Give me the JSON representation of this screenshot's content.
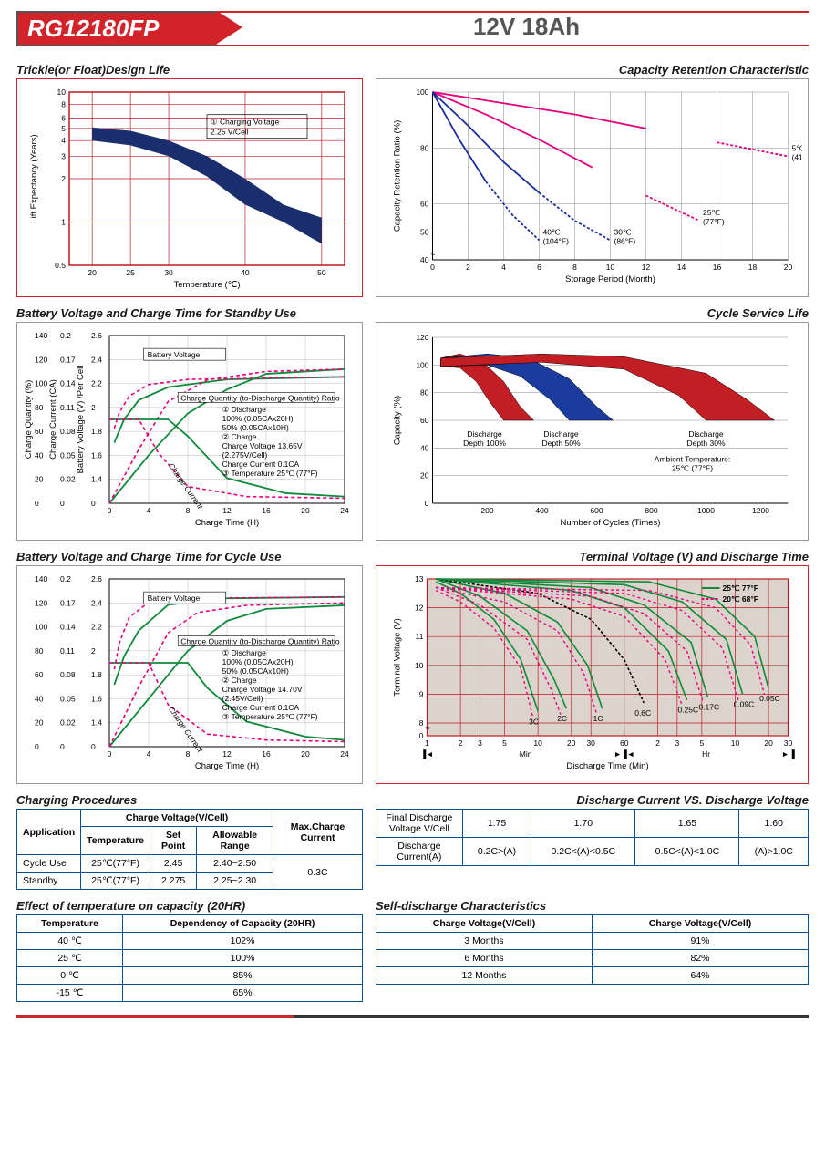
{
  "header": {
    "model": "RG12180FP",
    "spec": "12V  18Ah"
  },
  "chart1": {
    "title": "Trickle(or Float)Design Life",
    "xlabel": "Temperature (℃)",
    "ylabel": "Lift  Expectancy (Years)",
    "x_ticks": [
      20,
      25,
      30,
      40,
      50
    ],
    "y_ticks": [
      0.5,
      1,
      2,
      3,
      4,
      5,
      6,
      8,
      10
    ],
    "note": "① Charging Voltage\n2.25 V/Cell",
    "band": {
      "upper": [
        [
          20,
          5.1
        ],
        [
          25,
          4.8
        ],
        [
          30,
          4.0
        ],
        [
          35,
          3.0
        ],
        [
          40,
          2.0
        ],
        [
          45,
          1.4
        ],
        [
          50,
          1.1
        ]
      ],
      "lower": [
        [
          20,
          4.0
        ],
        [
          25,
          3.7
        ],
        [
          30,
          3.0
        ],
        [
          35,
          2.1
        ],
        [
          40,
          1.4
        ],
        [
          45,
          1.0
        ],
        [
          50,
          0.75
        ]
      ],
      "fill": "#1a2e6e"
    },
    "border": "#d2232a",
    "grid": "#bd1c24"
  },
  "chart2": {
    "title": "Capacity  Retention  Characteristic",
    "xlabel": "Storage Period (Month)",
    "ylabel": "Capacity Retention Ratio (%)",
    "x_ticks": [
      0,
      2,
      4,
      6,
      8,
      10,
      12,
      14,
      16,
      18,
      20
    ],
    "y_ticks": [
      40,
      50,
      60,
      80,
      100
    ],
    "series": [
      {
        "label": "5℃\n(41°F)",
        "color": "#e6007e",
        "dash": "3,2",
        "pts": [
          [
            0,
            100
          ],
          [
            4,
            96
          ],
          [
            8,
            92
          ],
          [
            12,
            87
          ],
          [
            16,
            82
          ],
          [
            20,
            77
          ]
        ],
        "solid_to": 14
      },
      {
        "label": "25℃\n(77°F)",
        "color": "#e6007e",
        "dash": "3,2",
        "pts": [
          [
            0,
            100
          ],
          [
            3,
            92
          ],
          [
            6,
            83
          ],
          [
            9,
            73
          ],
          [
            12,
            63
          ],
          [
            15,
            54
          ]
        ],
        "solid_to": 11
      },
      {
        "label": "30℃\n(86°F)",
        "color": "#1a2e9e",
        "dash": "3,2",
        "pts": [
          [
            0,
            100
          ],
          [
            2,
            88
          ],
          [
            4,
            75
          ],
          [
            6,
            64
          ],
          [
            8,
            54
          ],
          [
            10,
            47
          ]
        ],
        "solid_to": 7
      },
      {
        "label": "40℃\n(104°F)",
        "color": "#1a2e9e",
        "dash": "3,2",
        "pts": [
          [
            0,
            100
          ],
          [
            1.5,
            83
          ],
          [
            3,
            68
          ],
          [
            4.5,
            56
          ],
          [
            6,
            47
          ]
        ],
        "solid_to": 4
      }
    ]
  },
  "chart3": {
    "title": "Battery Voltage and Charge Time for Standby Use",
    "xlabel": "Charge Time (H)",
    "y1": "Charge Quantity (%)",
    "y2": "Charge Current (CA)",
    "y3": "Battery Voltage (V) /Per Cell",
    "x_ticks": [
      0,
      4,
      8,
      12,
      16,
      20,
      24
    ],
    "y1_ticks": [
      0,
      20,
      40,
      60,
      80,
      100,
      120,
      140
    ],
    "y2_ticks": [
      0,
      0.02,
      0.05,
      0.08,
      0.11,
      0.14,
      0.17,
      0.2
    ],
    "y3_ticks": [
      0,
      1.4,
      1.6,
      1.8,
      2.0,
      2.2,
      2.4,
      2.6
    ],
    "legend": [
      "Battery Voltage",
      "Charge Quantity (to-Discharge Quantity) Ratio",
      "① Discharge",
      "100% (0.05CAx20H)",
      "50% (0.05CAx10H)",
      "② Charge",
      "Charge Voltage 13.65V",
      "(2.275V/Cell)",
      "Charge Current 0.1CA",
      "③ Temperature 25℃ (77°F)"
    ],
    "curves": {
      "voltage_100": [
        [
          0.5,
          1.77
        ],
        [
          1.5,
          1.95
        ],
        [
          3,
          2.1
        ],
        [
          6,
          2.2
        ],
        [
          12,
          2.26
        ],
        [
          24,
          2.28
        ]
      ],
      "voltage_50": [
        [
          0.5,
          1.88
        ],
        [
          1,
          2.0
        ],
        [
          2,
          2.13
        ],
        [
          4,
          2.22
        ],
        [
          8,
          2.26
        ],
        [
          24,
          2.28
        ]
      ],
      "quantity_100": [
        [
          0,
          0
        ],
        [
          4,
          40
        ],
        [
          8,
          75
        ],
        [
          12,
          95
        ],
        [
          16,
          108
        ],
        [
          24,
          112
        ]
      ],
      "quantity_50": [
        [
          0,
          0
        ],
        [
          3,
          45
        ],
        [
          6,
          85
        ],
        [
          10,
          103
        ],
        [
          16,
          110
        ],
        [
          24,
          112
        ]
      ],
      "current_100": [
        [
          0,
          0.1
        ],
        [
          6,
          0.1
        ],
        [
          8,
          0.08
        ],
        [
          12,
          0.03
        ],
        [
          18,
          0.012
        ],
        [
          24,
          0.008
        ]
      ],
      "current_50": [
        [
          0,
          0.1
        ],
        [
          3,
          0.1
        ],
        [
          5,
          0.06
        ],
        [
          8,
          0.02
        ],
        [
          14,
          0.008
        ],
        [
          24,
          0.006
        ]
      ]
    },
    "colors": {
      "solid": "#0f8a3a",
      "dash": "#e6007e"
    }
  },
  "chart4": {
    "title": "Cycle Service Life",
    "xlabel": "Number of Cycles (Times)",
    "ylabel": "Capacity (%)",
    "x_ticks": [
      200,
      400,
      600,
      800,
      1000,
      1200
    ],
    "y_ticks": [
      0,
      20,
      40,
      60,
      80,
      100,
      120
    ],
    "notes": [
      "Discharge\nDepth 100%",
      "Discharge\nDepth 50%",
      "Discharge\nDepth 30%",
      "Ambient Temperature:\n25℃ (77°F)"
    ],
    "bands": [
      {
        "fill": "#c41e25",
        "upper": [
          [
            30,
            105
          ],
          [
            100,
            108
          ],
          [
            180,
            103
          ],
          [
            260,
            88
          ],
          [
            320,
            70
          ],
          [
            370,
            60
          ]
        ],
        "lower": [
          [
            30,
            99
          ],
          [
            100,
            98
          ],
          [
            160,
            88
          ],
          [
            210,
            73
          ],
          [
            260,
            60
          ]
        ]
      },
      {
        "fill": "#1a3c9e",
        "upper": [
          [
            30,
            105
          ],
          [
            200,
            108
          ],
          [
            350,
            105
          ],
          [
            500,
            90
          ],
          [
            600,
            70
          ],
          [
            660,
            60
          ]
        ],
        "lower": [
          [
            30,
            99
          ],
          [
            200,
            100
          ],
          [
            320,
            92
          ],
          [
            430,
            75
          ],
          [
            500,
            60
          ]
        ]
      },
      {
        "fill": "#c41e25",
        "upper": [
          [
            30,
            105
          ],
          [
            400,
            108
          ],
          [
            700,
            106
          ],
          [
            1000,
            94
          ],
          [
            1150,
            75
          ],
          [
            1250,
            60
          ]
        ],
        "lower": [
          [
            30,
            99
          ],
          [
            400,
            102
          ],
          [
            700,
            97
          ],
          [
            900,
            78
          ],
          [
            1000,
            60
          ]
        ]
      }
    ]
  },
  "chart5": {
    "title": "Battery Voltage and Charge Time for Cycle Use",
    "xlabel": "Charge Time (H)",
    "legend": [
      "Battery Voltage",
      "Charge Quantity (to-Discharge Quantity) Ratio",
      "① Discharge",
      "100% (0.05CAx20H)",
      "50% (0.05CAx10H)",
      "② Charge",
      "Charge Voltage 14.70V",
      "(2.45V/Cell)",
      "Charge Current 0.1CA",
      "③ Temperature 25℃ (77°F)"
    ],
    "x_ticks": [
      0,
      4,
      8,
      12,
      16,
      20,
      24
    ],
    "y1_ticks": [
      0,
      20,
      40,
      60,
      80,
      100,
      120,
      140
    ],
    "y2_ticks": [
      0,
      0.02,
      0.05,
      0.08,
      0.11,
      0.14,
      0.17,
      0.2
    ],
    "y3_ticks": [
      0,
      1.4,
      1.6,
      1.8,
      2.0,
      2.2,
      2.4,
      2.6
    ],
    "curves": {
      "voltage_100": [
        [
          0.5,
          1.78
        ],
        [
          1.5,
          2.0
        ],
        [
          3,
          2.2
        ],
        [
          6,
          2.4
        ],
        [
          12,
          2.45
        ],
        [
          24,
          2.46
        ]
      ],
      "voltage_50": [
        [
          0.5,
          1.9
        ],
        [
          1,
          2.1
        ],
        [
          2,
          2.3
        ],
        [
          4,
          2.42
        ],
        [
          8,
          2.45
        ],
        [
          24,
          2.46
        ]
      ],
      "quantity_100": [
        [
          0,
          0
        ],
        [
          4,
          40
        ],
        [
          8,
          80
        ],
        [
          12,
          105
        ],
        [
          16,
          115
        ],
        [
          24,
          118
        ]
      ],
      "quantity_50": [
        [
          0,
          0
        ],
        [
          3,
          50
        ],
        [
          6,
          95
        ],
        [
          9,
          112
        ],
        [
          14,
          118
        ],
        [
          24,
          120
        ]
      ],
      "current_100": [
        [
          0,
          0.1
        ],
        [
          8,
          0.1
        ],
        [
          10,
          0.07
        ],
        [
          14,
          0.03
        ],
        [
          20,
          0.012
        ],
        [
          24,
          0.008
        ]
      ],
      "current_50": [
        [
          0,
          0.1
        ],
        [
          4,
          0.1
        ],
        [
          6,
          0.05
        ],
        [
          10,
          0.015
        ],
        [
          16,
          0.008
        ],
        [
          24,
          0.006
        ]
      ]
    },
    "colors": {
      "solid": "#0f8a3a",
      "dash": "#e6007e"
    }
  },
  "chart6": {
    "title": "Terminal Voltage (V) and Discharge Time",
    "xlabel": "Discharge Time (Min)",
    "ylabel": "Terminal Voltage (V)",
    "x_sections": [
      "Min",
      "Hr"
    ],
    "x_ticks_min": [
      1,
      2,
      3,
      5,
      10,
      20,
      30,
      60
    ],
    "x_ticks_hr": [
      2,
      3,
      5,
      10,
      20,
      30
    ],
    "y_ticks": [
      0,
      8,
      9,
      10,
      11,
      12,
      13
    ],
    "legend": [
      {
        "label": "25℃ 77°F",
        "color": "#0f8a3a",
        "dash": "none"
      },
      {
        "label": "20℃ 68°F",
        "color": "#e6007e",
        "dash": "3,2"
      }
    ],
    "curves": [
      {
        "name": "3C",
        "color": "#0f8a3a",
        "pts": [
          [
            1.2,
            12.9
          ],
          [
            2,
            12.5
          ],
          [
            4,
            11.6
          ],
          [
            7,
            10.2
          ],
          [
            10,
            8.4
          ]
        ]
      },
      {
        "name": "2C",
        "color": "#0f8a3a",
        "pts": [
          [
            1.2,
            13.0
          ],
          [
            3,
            12.4
          ],
          [
            8,
            11.2
          ],
          [
            14,
            9.5
          ],
          [
            18,
            8.5
          ]
        ]
      },
      {
        "name": "1C",
        "color": "#0f8a3a",
        "pts": [
          [
            1.2,
            13.0
          ],
          [
            5,
            12.5
          ],
          [
            15,
            11.5
          ],
          [
            28,
            10.0
          ],
          [
            38,
            8.5
          ]
        ]
      },
      {
        "name": "0.6C",
        "color": "#000",
        "dash": "3,2",
        "pts": [
          [
            1.2,
            13.0
          ],
          [
            10,
            12.5
          ],
          [
            30,
            11.6
          ],
          [
            60,
            10.2
          ],
          [
            90,
            8.7
          ]
        ]
      },
      {
        "name": "0.25C",
        "color": "#0f8a3a",
        "pts": [
          [
            1.2,
            13.0
          ],
          [
            20,
            12.6
          ],
          [
            60,
            12.0
          ],
          [
            150,
            10.5
          ],
          [
            220,
            8.8
          ]
        ]
      },
      {
        "name": "0.17C",
        "color": "#0f8a3a",
        "pts": [
          [
            1.2,
            13.0
          ],
          [
            30,
            12.7
          ],
          [
            90,
            12.1
          ],
          [
            240,
            10.8
          ],
          [
            340,
            8.9
          ]
        ]
      },
      {
        "name": "0.09C",
        "color": "#0f8a3a",
        "pts": [
          [
            1.2,
            13.0
          ],
          [
            60,
            12.8
          ],
          [
            200,
            12.2
          ],
          [
            500,
            10.9
          ],
          [
            700,
            9.0
          ]
        ]
      },
      {
        "name": "0.05C",
        "color": "#0f8a3a",
        "pts": [
          [
            1.2,
            13.0
          ],
          [
            100,
            12.9
          ],
          [
            400,
            12.3
          ],
          [
            900,
            11.0
          ],
          [
            1200,
            9.2
          ]
        ]
      }
    ],
    "dash_curves": [
      [
        [
          1.2,
          12.6
        ],
        [
          2,
          12.2
        ],
        [
          4,
          11.3
        ],
        [
          7,
          9.9
        ],
        [
          9,
          8.2
        ]
      ],
      [
        [
          1.2,
          12.7
        ],
        [
          3,
          12.1
        ],
        [
          8,
          10.9
        ],
        [
          13,
          9.2
        ],
        [
          16,
          8.3
        ]
      ],
      [
        [
          1.2,
          12.7
        ],
        [
          5,
          12.2
        ],
        [
          15,
          11.2
        ],
        [
          26,
          9.7
        ],
        [
          34,
          8.3
        ]
      ],
      [
        [
          1.2,
          12.7
        ],
        [
          20,
          12.3
        ],
        [
          60,
          11.7
        ],
        [
          140,
          10.2
        ],
        [
          200,
          8.6
        ]
      ],
      [
        [
          1.2,
          12.7
        ],
        [
          30,
          12.4
        ],
        [
          90,
          11.8
        ],
        [
          220,
          10.5
        ],
        [
          310,
          8.7
        ]
      ],
      [
        [
          1.2,
          12.7
        ],
        [
          60,
          12.5
        ],
        [
          200,
          11.9
        ],
        [
          460,
          10.6
        ],
        [
          640,
          8.8
        ]
      ],
      [
        [
          1.2,
          12.7
        ],
        [
          100,
          12.6
        ],
        [
          400,
          12.0
        ],
        [
          830,
          10.7
        ],
        [
          1100,
          9.0
        ]
      ]
    ]
  },
  "table_charging": {
    "title": "Charging Procedures",
    "headers": {
      "app": "Application",
      "cvc": "Charge Voltage(V/Cell)",
      "temp": "Temperature",
      "sp": "Set Point",
      "ar": "Allowable Range",
      "max": "Max.Charge Current"
    },
    "rows": [
      {
        "app": "Cycle Use",
        "temp": "25℃(77°F)",
        "sp": "2.45",
        "ar": "2.40~2.50"
      },
      {
        "app": "Standby",
        "temp": "25℃(77°F)",
        "sp": "2.275",
        "ar": "2.25~2.30"
      }
    ],
    "max": "0.3C"
  },
  "table_discharge_v": {
    "title": "Discharge Current VS. Discharge Voltage",
    "r1": {
      "h": "Final Discharge\nVoltage V/Cell",
      "c": [
        "1.75",
        "1.70",
        "1.65",
        "1.60"
      ]
    },
    "r2": {
      "h": "Discharge\nCurrent(A)",
      "c": [
        "0.2C>(A)",
        "0.2C<(A)<0.5C",
        "0.5C<(A)<1.0C",
        "(A)>1.0C"
      ]
    }
  },
  "table_temp": {
    "title": "Effect of temperature on capacity (20HR)",
    "headers": [
      "Temperature",
      "Dependency of Capacity (20HR)"
    ],
    "rows": [
      [
        "40 ℃",
        "102%"
      ],
      [
        "25 ℃",
        "100%"
      ],
      [
        "0 ℃",
        "85%"
      ],
      [
        "-15 ℃",
        "65%"
      ]
    ]
  },
  "table_self": {
    "title": "Self-discharge Characteristics",
    "headers": [
      "Charge Voltage(V/Cell)",
      "Charge Voltage(V/Cell)"
    ],
    "rows": [
      [
        "3 Months",
        "91%"
      ],
      [
        "6 Months",
        "82%"
      ],
      [
        "12 Months",
        "64%"
      ]
    ]
  }
}
